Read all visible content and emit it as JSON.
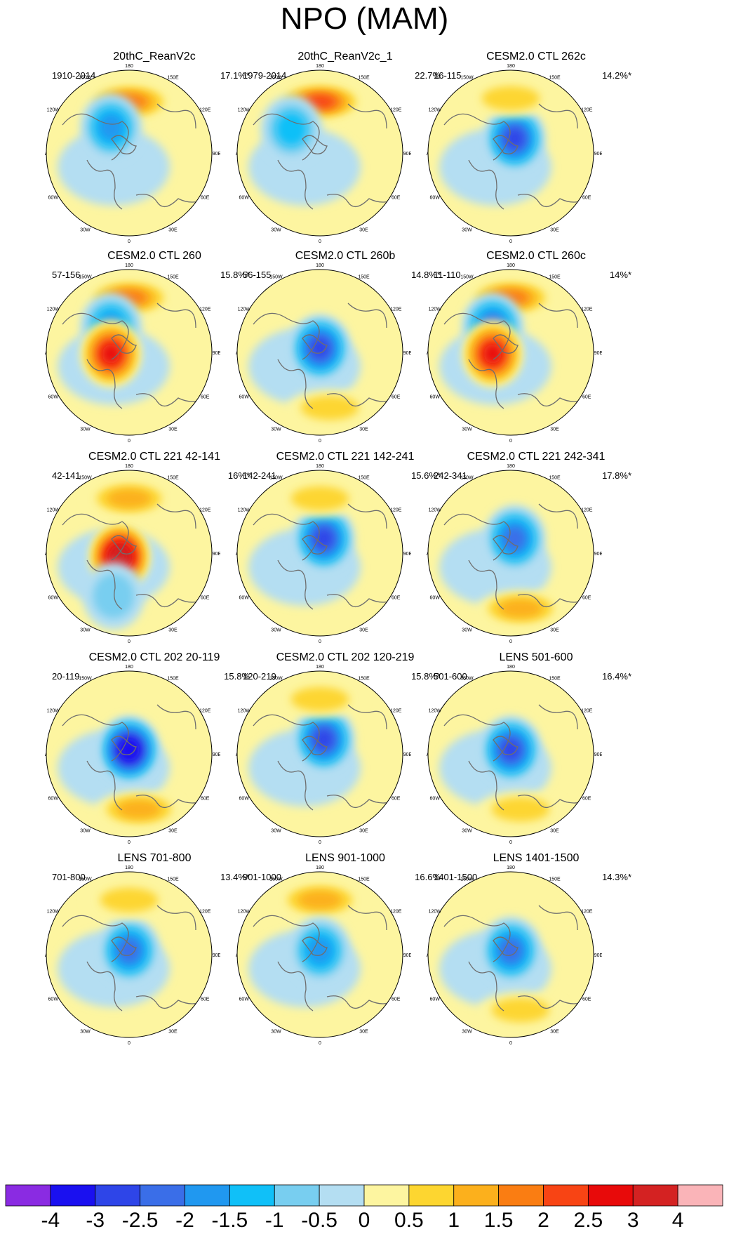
{
  "figure": {
    "title": "NPO (MAM)",
    "lon_labels": {
      "d180": "180",
      "d150E": "150E",
      "d120E": "120E",
      "d90E": "90E",
      "d60E": "60E",
      "d30E": "30E",
      "d0": "0",
      "d30W": "30W",
      "d60W": "60W",
      "d90W": "90W",
      "d120W": "120W",
      "d150W": "150W"
    }
  },
  "chart_data": {
    "type": "map",
    "projection": "north polar stereographic",
    "field": "NPO (MAM)",
    "panels": [
      {
        "title": "20thC_ReanV2c",
        "period": "1910-2014",
        "variance": "17.1%*",
        "anomalies": [
          {
            "sign": "positive",
            "peak": 2.0,
            "center": "Bering Sea / Aleutians"
          },
          {
            "sign": "negative",
            "peak": -2.0,
            "center": "Alaska"
          }
        ]
      },
      {
        "title": "20thC_ReanV2c_1",
        "period": "1979-2014",
        "variance": "22.7%",
        "anomalies": [
          {
            "sign": "positive",
            "peak": 2.5,
            "center": "Bering Sea / Aleutians"
          },
          {
            "sign": "negative",
            "peak": -1.5,
            "center": "Canada"
          }
        ]
      },
      {
        "title": "CESM2.0 CTL 262c",
        "period": "16-115",
        "variance": "14.2%*",
        "anomalies": [
          {
            "sign": "negative",
            "peak": -3.0,
            "center": "Arctic / Siberia"
          },
          {
            "sign": "positive",
            "peak": 1.0,
            "center": "North Pacific"
          }
        ]
      },
      {
        "title": "CESM2.0 CTL 260",
        "period": "57-156",
        "variance": "15.8%*",
        "anomalies": [
          {
            "sign": "positive",
            "peak": 2.0,
            "center": "North Pacific"
          },
          {
            "sign": "negative",
            "peak": -2.0,
            "center": "Alaska"
          },
          {
            "sign": "positive",
            "peak": 3.0,
            "center": "Greenland"
          }
        ]
      },
      {
        "title": "CESM2.0 CTL 260b",
        "period": "56-155",
        "variance": "14.8%*",
        "anomalies": [
          {
            "sign": "negative",
            "peak": -3.0,
            "center": "Arctic"
          },
          {
            "sign": "positive",
            "peak": 1.0,
            "center": "Europe"
          }
        ]
      },
      {
        "title": "CESM2.0 CTL 260c",
        "period": "11-110",
        "variance": "14%*",
        "anomalies": [
          {
            "sign": "positive",
            "peak": 2.0,
            "center": "North Pacific"
          },
          {
            "sign": "negative",
            "peak": -2.5,
            "center": "Alaska"
          },
          {
            "sign": "positive",
            "peak": 3.0,
            "center": "Greenland"
          }
        ]
      },
      {
        "title": "CESM2.0 CTL 221 42-141",
        "period": "42-141",
        "variance": "16%*",
        "anomalies": [
          {
            "sign": "positive",
            "peak": 1.5,
            "center": "North Pacific"
          },
          {
            "sign": "positive",
            "peak": 4.0,
            "center": "Greenland / Arctic"
          },
          {
            "sign": "negative",
            "peak": -1.0,
            "center": "Atlantic"
          }
        ]
      },
      {
        "title": "CESM2.0 CTL 221 142-241",
        "period": "142-241",
        "variance": "15.6%*",
        "anomalies": [
          {
            "sign": "negative",
            "peak": -3.0,
            "center": "Arctic / Siberia"
          },
          {
            "sign": "positive",
            "peak": 1.0,
            "center": "North Pacific"
          }
        ]
      },
      {
        "title": "CESM2.0 CTL 221 242-341",
        "period": "242-341",
        "variance": "17.8%*",
        "anomalies": [
          {
            "sign": "negative",
            "peak": -2.5,
            "center": "Arctic / Siberia"
          },
          {
            "sign": "positive",
            "peak": 1.5,
            "center": "Europe"
          }
        ]
      },
      {
        "title": "CESM2.0 CTL 202 20-119",
        "period": "20-119",
        "variance": "15.8%",
        "anomalies": [
          {
            "sign": "negative",
            "peak": -4.0,
            "center": "Arctic"
          },
          {
            "sign": "positive",
            "peak": 1.5,
            "center": "Europe"
          }
        ]
      },
      {
        "title": "CESM2.0 CTL 202 120-219",
        "period": "120-219",
        "variance": "15.8%*",
        "anomalies": [
          {
            "sign": "negative",
            "peak": -3.0,
            "center": "Arctic / Siberia"
          },
          {
            "sign": "positive",
            "peak": 1.0,
            "center": "North Pacific"
          }
        ]
      },
      {
        "title": "LENS 501-600",
        "period": "501-600",
        "variance": "16.4%*",
        "anomalies": [
          {
            "sign": "negative",
            "peak": -3.0,
            "center": "Arctic"
          },
          {
            "sign": "positive",
            "peak": 1.0,
            "center": "Europe"
          }
        ]
      },
      {
        "title": "LENS 701-800",
        "period": "701-800",
        "variance": "13.4%*",
        "anomalies": [
          {
            "sign": "negative",
            "peak": -2.5,
            "center": "Arctic"
          },
          {
            "sign": "positive",
            "peak": 1.0,
            "center": "North Pacific"
          }
        ]
      },
      {
        "title": "LENS 901-1000",
        "period": "901-1000",
        "variance": "16.6%",
        "anomalies": [
          {
            "sign": "positive",
            "peak": 1.5,
            "center": "North Pacific"
          },
          {
            "sign": "negative",
            "peak": -2.0,
            "center": "Arctic"
          }
        ]
      },
      {
        "title": "LENS 1401-1500",
        "period": "1401-1500",
        "variance": "14.3%*",
        "anomalies": [
          {
            "sign": "negative",
            "peak": -2.5,
            "center": "Arctic"
          },
          {
            "sign": "positive",
            "peak": 1.0,
            "center": "Europe"
          }
        ]
      }
    ],
    "colorbar": {
      "tick_labels": [
        "-4",
        "-3",
        "-2.5",
        "-2",
        "-1.5",
        "-1",
        "-0.5",
        "0",
        "0.5",
        "1",
        "1.5",
        "2",
        "2.5",
        "3",
        "4"
      ],
      "levels": [
        -4,
        -3,
        -2.5,
        -2,
        -1.5,
        -1,
        -0.5,
        0,
        0.5,
        1,
        1.5,
        2,
        2.5,
        3,
        4
      ],
      "colors": [
        "#8a2be2",
        "#1a10f0",
        "#2e45e8",
        "#3a6ee8",
        "#2098f0",
        "#10c0f8",
        "#78cef0",
        "#b4def2",
        "#fdf5a0",
        "#fdd630",
        "#fcb01c",
        "#fa7d12",
        "#f84414",
        "#e80a0a",
        "#d42222",
        "#fab4b8"
      ]
    }
  }
}
